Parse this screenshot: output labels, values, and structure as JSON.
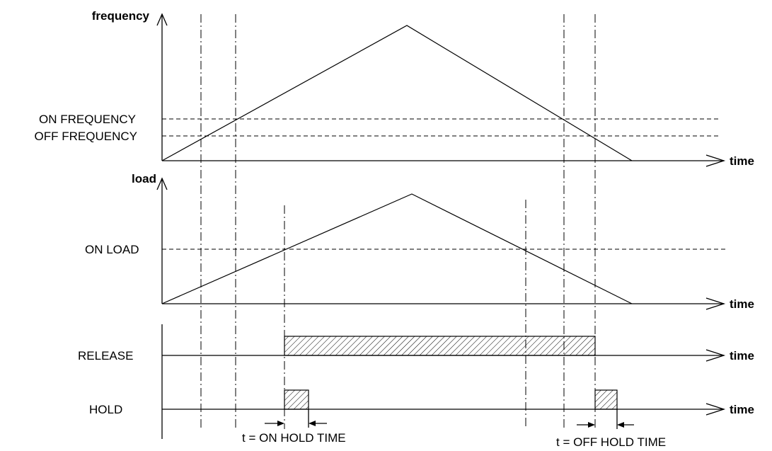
{
  "panels": {
    "frequency": {
      "axis_label": "frequency",
      "time_label": "time",
      "on_level_label": "ON FREQUENCY",
      "off_level_label": "OFF FREQUENCY"
    },
    "load": {
      "axis_label": "load",
      "time_label": "time",
      "on_level_label": "ON LOAD"
    },
    "release": {
      "signal_label": "RELEASE",
      "time_label": "time"
    },
    "hold": {
      "signal_label": "HOLD",
      "time_label": "time",
      "on_hold_time_label": "t = ON HOLD TIME",
      "off_hold_time_label": "t = OFF HOLD TIME"
    }
  }
}
